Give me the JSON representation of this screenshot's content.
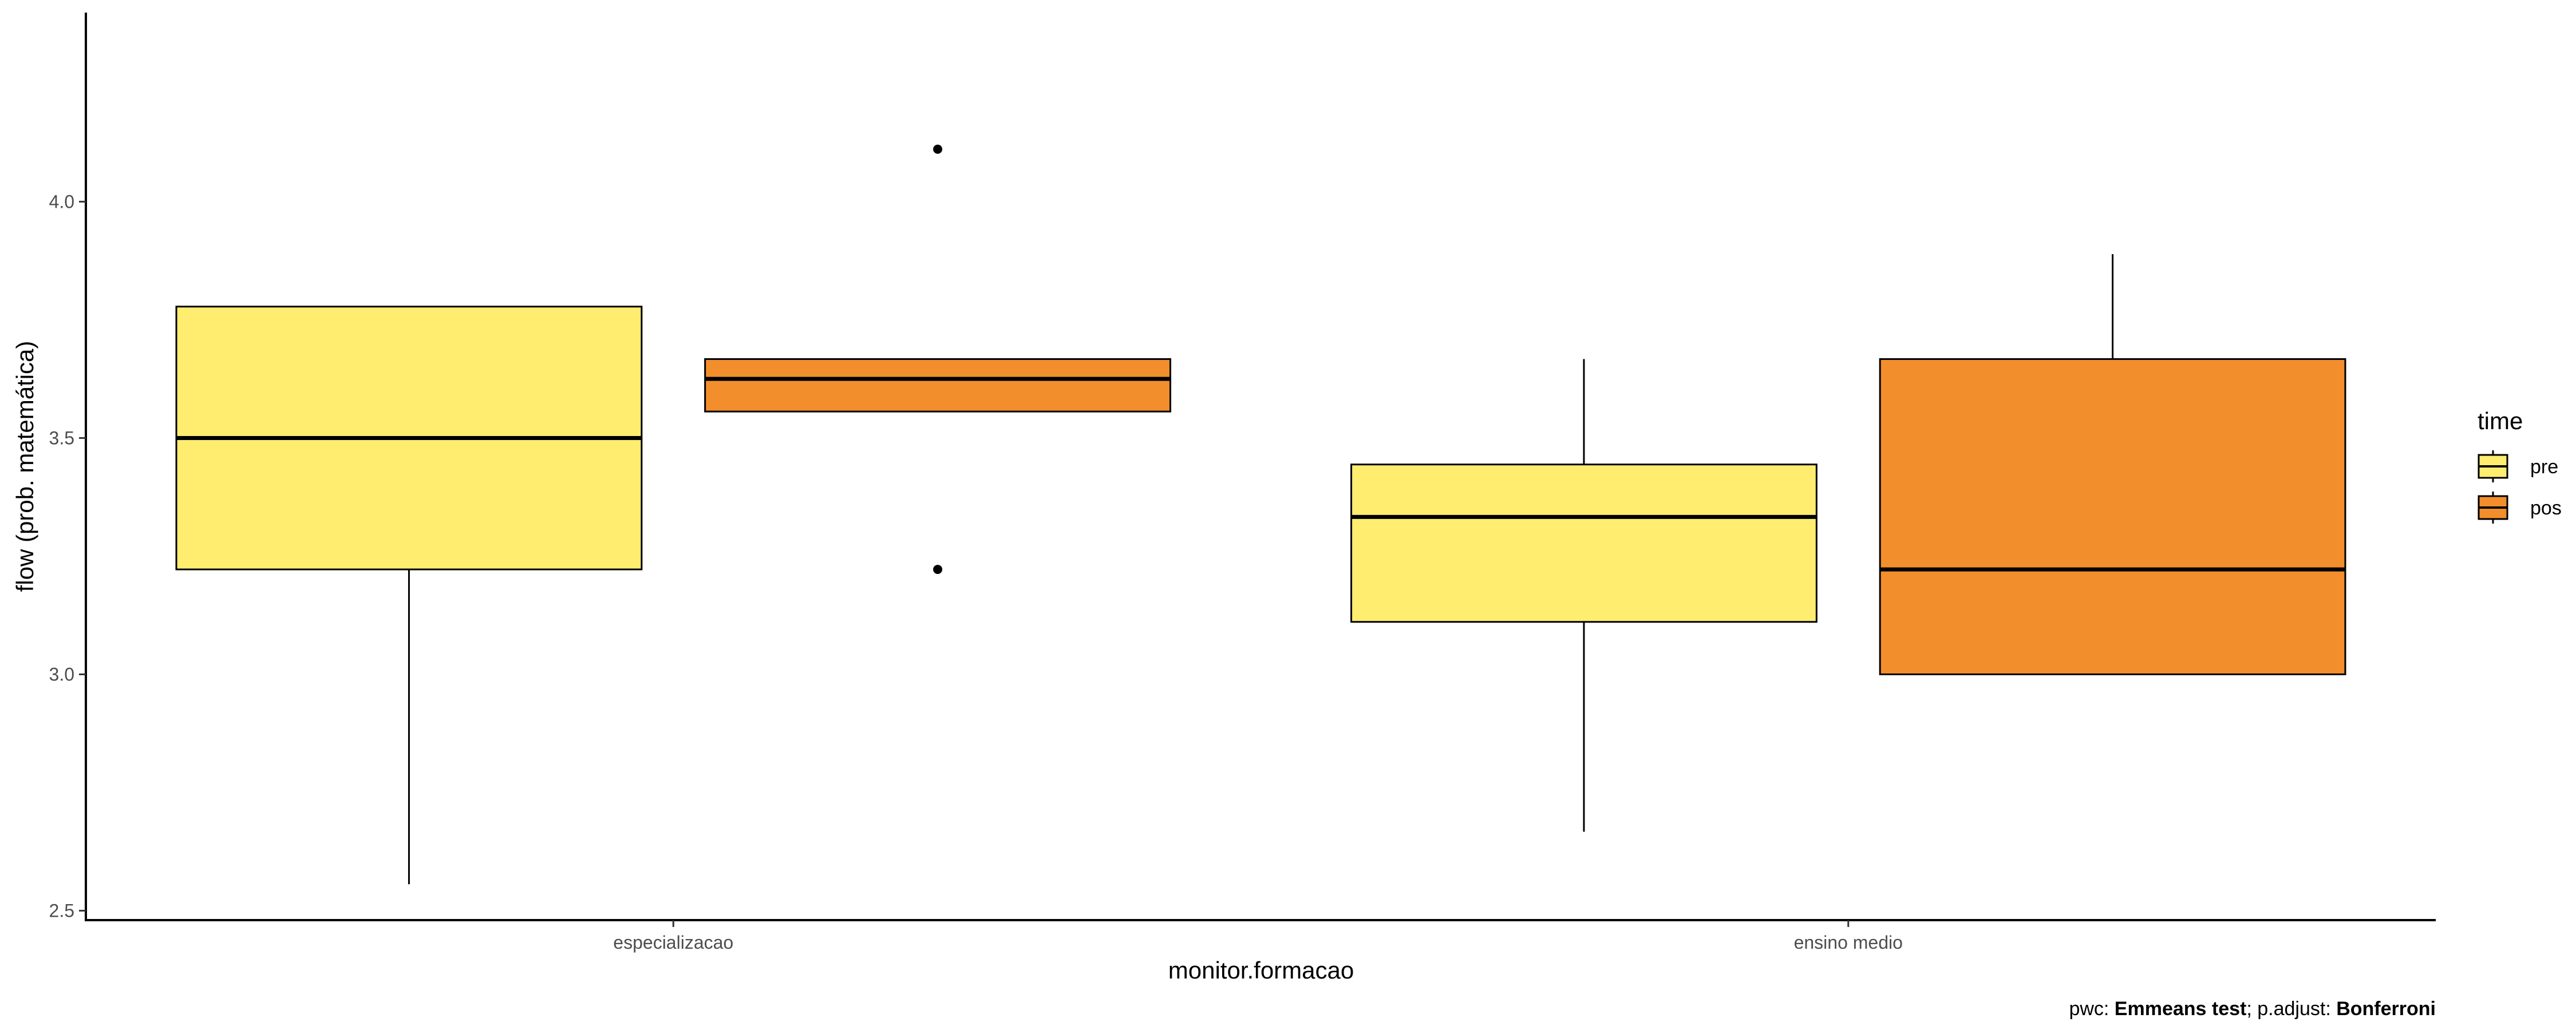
{
  "chart_data": {
    "type": "boxplot",
    "xlabel": "monitor.formacao",
    "ylabel": "flow (prob. matemática)",
    "ylim": [
      2.48,
      4.4
    ],
    "yticks": [
      2.5,
      3.0,
      3.5,
      4.0
    ],
    "ytick_labels": [
      "2.5",
      "3.0",
      "3.5",
      "4.0"
    ],
    "categories": [
      "especializacao",
      "ensino medio"
    ],
    "legend": {
      "title": "time",
      "position": "right",
      "entries": [
        {
          "name": "pre",
          "color": "#FFED6F"
        },
        {
          "name": "pos",
          "color": "#F28E2B"
        }
      ]
    },
    "series": [
      {
        "name": "pre",
        "color": "#FFED6F",
        "boxes": [
          {
            "category": "especializacao",
            "whisker_low": 2.556,
            "q1": 3.222,
            "median": 3.5,
            "q3": 3.778,
            "whisker_high": 3.778,
            "outliers": []
          },
          {
            "category": "ensino medio",
            "whisker_low": 2.667,
            "q1": 3.111,
            "median": 3.333,
            "q3": 3.444,
            "whisker_high": 3.667,
            "outliers": []
          }
        ]
      },
      {
        "name": "pos",
        "color": "#F28E2B",
        "boxes": [
          {
            "category": "especializacao",
            "whisker_low": 3.556,
            "q1": 3.556,
            "median": 3.625,
            "q3": 3.667,
            "whisker_high": 3.667,
            "outliers": [
              4.111,
              3.222
            ]
          },
          {
            "category": "ensino medio",
            "whisker_low": 3.0,
            "q1": 3.0,
            "median": 3.222,
            "q3": 3.667,
            "whisker_high": 3.889,
            "outliers": []
          }
        ]
      }
    ],
    "caption": {
      "prefix": "pwc: ",
      "test": "Emmeans test",
      "middle": "; p.adjust: ",
      "method": "Bonferroni"
    }
  }
}
